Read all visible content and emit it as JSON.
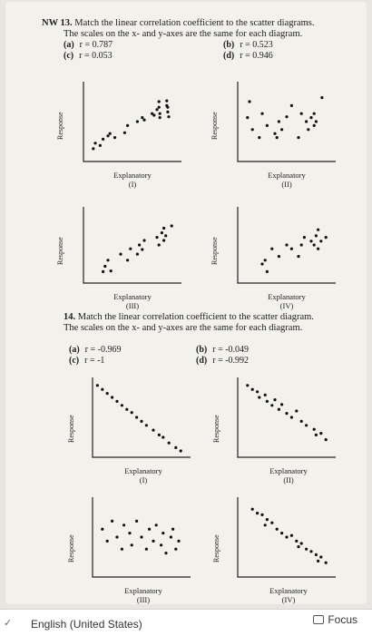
{
  "page": {
    "q13": {
      "label": "NW 13.",
      "text_line1": "Match the linear correlation coefficient to the scatter diagrams.",
      "text_line2": "The scales on the x- and y-axes are the same for each diagram.",
      "options": [
        {
          "letter": "(a)",
          "value": "r = 0.787"
        },
        {
          "letter": "(b)",
          "value": "r = 0.523"
        },
        {
          "letter": "(c)",
          "value": "r = 0.053"
        },
        {
          "letter": "(d)",
          "value": "r = 0.946"
        }
      ]
    },
    "q14": {
      "label": "14.",
      "text_line1": "Match the linear correlation coefficient to the scatter diagram.",
      "text_line2": "The scales on the x- and y-axes are the same for each diagram.",
      "options": [
        {
          "letter": "(a)",
          "value": "r = -0.969"
        },
        {
          "letter": "(b)",
          "value": "r = -0.049"
        },
        {
          "letter": "(c)",
          "value": "r = -1"
        },
        {
          "letter": "(d)",
          "value": "r = -0.992"
        }
      ]
    },
    "axis_y": "Response",
    "axis_x": "Explanatory",
    "numerals": [
      "(I)",
      "(II)",
      "(III)",
      "(IV)"
    ]
  },
  "taskbar": {
    "language": "English (United States)",
    "focus": "Focus"
  },
  "chart_data": [
    {
      "type": "scatter",
      "id": "q13-I",
      "label": "(I)",
      "xlabel": "Explanatory",
      "ylabel": "Response",
      "x": [
        0.1,
        0.12,
        0.17,
        0.2,
        0.25,
        0.27,
        0.32,
        0.42,
        0.45,
        0.55,
        0.6,
        0.62,
        0.7,
        0.72,
        0.75,
        0.77,
        0.77,
        0.78,
        0.78,
        0.85,
        0.85,
        0.86,
        0.86,
        0.87
      ],
      "y": [
        0.16,
        0.23,
        0.2,
        0.28,
        0.32,
        0.35,
        0.3,
        0.36,
        0.45,
        0.5,
        0.55,
        0.52,
        0.6,
        0.58,
        0.65,
        0.68,
        0.75,
        0.55,
        0.6,
        0.7,
        0.76,
        0.62,
        0.68,
        0.56
      ]
    },
    {
      "type": "scatter",
      "id": "q13-II",
      "label": "(II)",
      "xlabel": "Explanatory",
      "ylabel": "Response",
      "x": [
        0.1,
        0.12,
        0.15,
        0.22,
        0.25,
        0.3,
        0.38,
        0.4,
        0.42,
        0.45,
        0.5,
        0.55,
        0.62,
        0.65,
        0.7,
        0.72,
        0.75,
        0.78,
        0.78,
        0.8,
        0.86
      ],
      "y": [
        0.55,
        0.75,
        0.4,
        0.3,
        0.6,
        0.45,
        0.35,
        0.3,
        0.5,
        0.4,
        0.56,
        0.7,
        0.3,
        0.6,
        0.5,
        0.4,
        0.55,
        0.6,
        0.45,
        0.5,
        0.8
      ]
    },
    {
      "type": "scatter",
      "id": "q13-III",
      "label": "(III)",
      "xlabel": "Explanatory",
      "ylabel": "Response",
      "x": [
        0.2,
        0.22,
        0.25,
        0.28,
        0.38,
        0.45,
        0.48,
        0.55,
        0.57,
        0.6,
        0.62,
        0.75,
        0.77,
        0.8,
        0.82,
        0.82,
        0.84,
        0.9
      ],
      "y": [
        0.15,
        0.22,
        0.3,
        0.16,
        0.38,
        0.3,
        0.45,
        0.38,
        0.5,
        0.44,
        0.56,
        0.6,
        0.5,
        0.66,
        0.56,
        0.72,
        0.62,
        0.75
      ]
    },
    {
      "type": "scatter",
      "id": "q13-IV",
      "label": "(IV)",
      "xlabel": "Explanatory",
      "ylabel": "Response",
      "x": [
        0.25,
        0.28,
        0.3,
        0.35,
        0.42,
        0.5,
        0.55,
        0.62,
        0.65,
        0.68,
        0.75,
        0.78,
        0.8,
        0.82,
        0.82,
        0.85,
        0.9
      ],
      "y": [
        0.25,
        0.3,
        0.15,
        0.45,
        0.35,
        0.5,
        0.45,
        0.35,
        0.5,
        0.6,
        0.55,
        0.5,
        0.62,
        0.45,
        0.7,
        0.55,
        0.6
      ]
    },
    {
      "type": "scatter",
      "id": "q14-I",
      "label": "(I)",
      "xlabel": "Explanatory",
      "ylabel": "Response",
      "x": [
        0.05,
        0.1,
        0.15,
        0.2,
        0.25,
        0.3,
        0.35,
        0.4,
        0.45,
        0.5,
        0.55,
        0.62,
        0.68,
        0.72,
        0.78,
        0.85,
        0.9
      ],
      "y": [
        0.9,
        0.85,
        0.8,
        0.75,
        0.7,
        0.65,
        0.6,
        0.56,
        0.5,
        0.45,
        0.4,
        0.34,
        0.28,
        0.25,
        0.18,
        0.12,
        0.08
      ]
    },
    {
      "type": "scatter",
      "id": "q14-II",
      "label": "(II)",
      "xlabel": "Explanatory",
      "ylabel": "Response",
      "x": [
        0.1,
        0.15,
        0.2,
        0.22,
        0.28,
        0.3,
        0.35,
        0.38,
        0.42,
        0.45,
        0.5,
        0.55,
        0.6,
        0.65,
        0.7,
        0.78,
        0.8,
        0.85,
        0.9
      ],
      "y": [
        0.9,
        0.85,
        0.82,
        0.75,
        0.78,
        0.7,
        0.65,
        0.72,
        0.6,
        0.66,
        0.55,
        0.5,
        0.58,
        0.45,
        0.4,
        0.35,
        0.28,
        0.3,
        0.22
      ]
    },
    {
      "type": "scatter",
      "id": "q14-III",
      "label": "(III)",
      "xlabel": "Explanatory",
      "ylabel": "Response",
      "x": [
        0.1,
        0.15,
        0.2,
        0.25,
        0.3,
        0.32,
        0.38,
        0.4,
        0.45,
        0.5,
        0.55,
        0.58,
        0.62,
        0.65,
        0.7,
        0.72,
        0.75,
        0.8,
        0.82,
        0.85,
        0.88
      ],
      "y": [
        0.6,
        0.45,
        0.7,
        0.5,
        0.35,
        0.65,
        0.55,
        0.4,
        0.7,
        0.5,
        0.35,
        0.6,
        0.45,
        0.65,
        0.4,
        0.55,
        0.3,
        0.5,
        0.6,
        0.35,
        0.45
      ]
    },
    {
      "type": "scatter",
      "id": "q14-IV",
      "label": "(IV)",
      "xlabel": "Explanatory",
      "ylabel": "Response",
      "x": [
        0.15,
        0.2,
        0.25,
        0.28,
        0.3,
        0.35,
        0.4,
        0.45,
        0.5,
        0.55,
        0.6,
        0.62,
        0.65,
        0.7,
        0.75,
        0.8,
        0.82,
        0.85,
        0.9
      ],
      "y": [
        0.85,
        0.8,
        0.78,
        0.65,
        0.72,
        0.68,
        0.6,
        0.55,
        0.5,
        0.52,
        0.45,
        0.38,
        0.42,
        0.35,
        0.32,
        0.28,
        0.2,
        0.25,
        0.18
      ]
    }
  ]
}
